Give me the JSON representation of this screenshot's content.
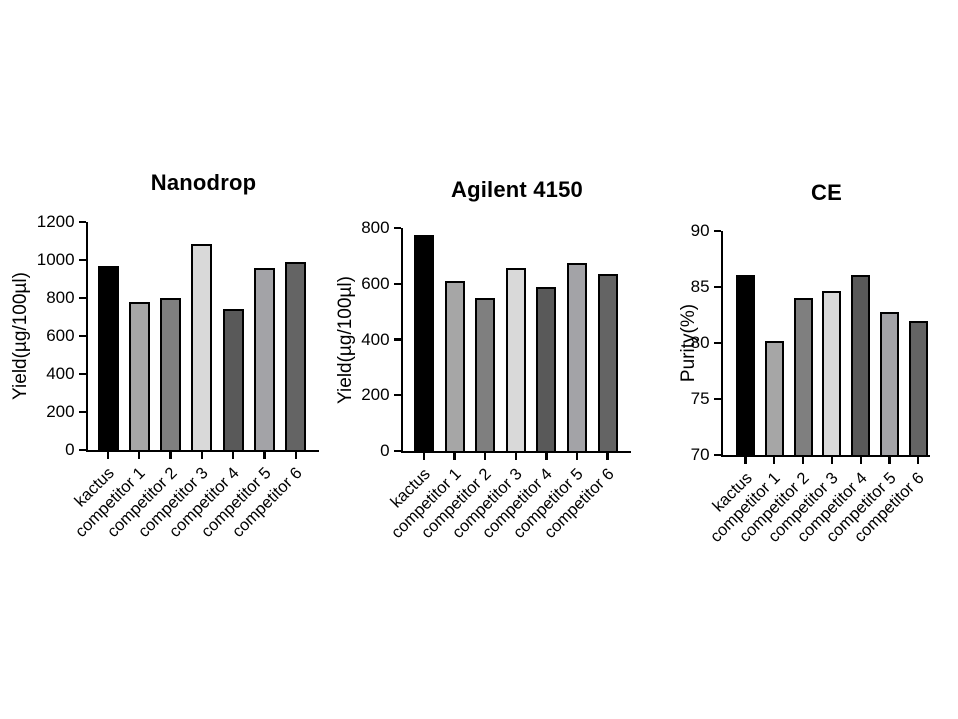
{
  "page": {
    "background_color": "#ffffff",
    "text_color": "#000000",
    "axis_color": "#000000"
  },
  "chart_data": [
    {
      "type": "bar",
      "title": "Nanodrop",
      "xlabel": "",
      "ylabel": "Yield(µg/100µl)",
      "categories": [
        "kactus",
        "competitor 1",
        "competitor 2",
        "competitor 3",
        "competitor 4",
        "competitor 5",
        "competitor 6"
      ],
      "values": [
        970,
        780,
        800,
        1085,
        740,
        960,
        990
      ],
      "ylim": [
        0,
        1200
      ],
      "yticks": [
        0,
        200,
        400,
        600,
        800,
        1000,
        1200
      ],
      "bar_colors": [
        "#000000",
        "#a6a6a6",
        "#7f7f7f",
        "#d9d9d9",
        "#595959",
        "#a3a3a7",
        "#646464"
      ],
      "bar_border_color": "#000000",
      "grid": false,
      "legend": null
    },
    {
      "type": "bar",
      "title": "Agilent 4150",
      "xlabel": "",
      "ylabel": "Yield(µg/100µl)",
      "categories": [
        "kactus",
        "competitor 1",
        "competitor 2",
        "competitor 3",
        "competitor 4",
        "competitor 5",
        "competitor 6"
      ],
      "values": [
        775,
        610,
        550,
        655,
        590,
        675,
        635
      ],
      "ylim": [
        0,
        800
      ],
      "yticks": [
        0,
        200,
        400,
        600,
        800
      ],
      "bar_colors": [
        "#000000",
        "#a6a6a6",
        "#7f7f7f",
        "#d9d9d9",
        "#595959",
        "#a3a3a7",
        "#646464"
      ],
      "bar_border_color": "#000000",
      "grid": false,
      "legend": null
    },
    {
      "type": "bar",
      "title": "CE",
      "xlabel": "",
      "ylabel": "Purity(%)",
      "categories": [
        "kactus",
        "competitor 1",
        "competitor 2",
        "competitor 3",
        "competitor 4",
        "competitor 5",
        "competitor 6"
      ],
      "values": [
        86.1,
        80.2,
        84.0,
        84.6,
        86.1,
        82.8,
        82.0
      ],
      "ylim": [
        70,
        90
      ],
      "yticks": [
        70,
        75,
        80,
        85,
        90
      ],
      "bar_colors": [
        "#000000",
        "#a6a6a6",
        "#7f7f7f",
        "#d9d9d9",
        "#595959",
        "#a3a3a7",
        "#646464"
      ],
      "bar_border_color": "#000000",
      "grid": false,
      "legend": null
    }
  ]
}
